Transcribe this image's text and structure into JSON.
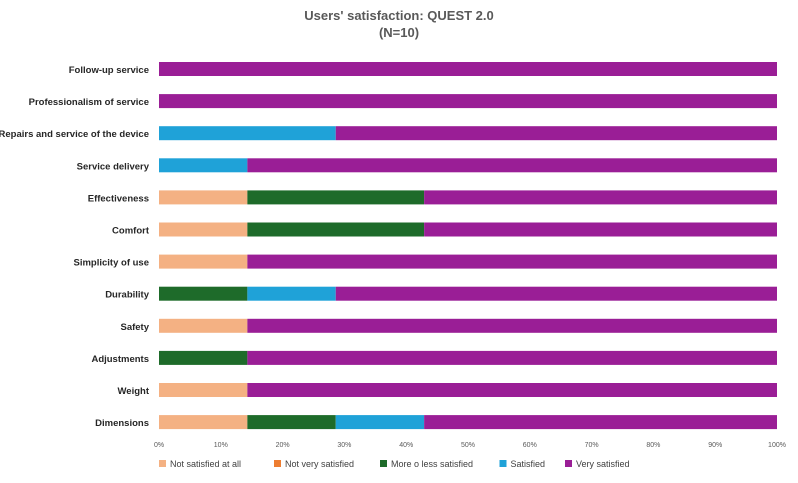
{
  "chart_data": {
    "type": "bar",
    "orientation": "horizontal",
    "stacked": true,
    "normalized": true,
    "title": "Users' satisfaction: QUEST 2.0",
    "subtitle": "(N=10)",
    "xlabel": "",
    "ylabel": "",
    "xlim": [
      0,
      100
    ],
    "x_ticks": [
      "0%",
      "10%",
      "20%",
      "30%",
      "40%",
      "50%",
      "60%",
      "70%",
      "80%",
      "90%",
      "100%"
    ],
    "grid": false,
    "legend_position": "bottom",
    "categories": [
      "Follow-up service",
      "Professionalism of service",
      "Repairs and service of the device",
      "Service delivery",
      "Effectiveness",
      "Comfort",
      "Simplicity of use",
      "Durability",
      "Safety",
      "Adjustments",
      "Weight",
      "Dimensions"
    ],
    "series": [
      {
        "name": "Not satisfied at all",
        "color": "#F4B183",
        "values": [
          0,
          0,
          0,
          0,
          14.3,
          14.3,
          14.3,
          0,
          14.3,
          0,
          14.3,
          14.3
        ]
      },
      {
        "name": "Not very satisfied",
        "color": "#ED7D31",
        "values": [
          0,
          0,
          0,
          0,
          0,
          0,
          0,
          0,
          0,
          0,
          0,
          0
        ]
      },
      {
        "name": "More o less satisfied",
        "color": "#1E6B2A",
        "values": [
          0,
          0,
          0,
          0,
          28.6,
          28.6,
          0,
          14.3,
          0,
          14.3,
          0,
          14.3
        ]
      },
      {
        "name": "Satisfied",
        "color": "#1FA2D8",
        "values": [
          0,
          0,
          28.6,
          14.3,
          0,
          0,
          0,
          14.3,
          0,
          0,
          0,
          14.3
        ]
      },
      {
        "name": "Very satisfied",
        "color": "#9A1E96",
        "values": [
          100,
          100,
          71.4,
          85.7,
          57.1,
          57.1,
          85.7,
          71.4,
          85.7,
          85.7,
          85.7,
          57.1
        ]
      }
    ]
  }
}
